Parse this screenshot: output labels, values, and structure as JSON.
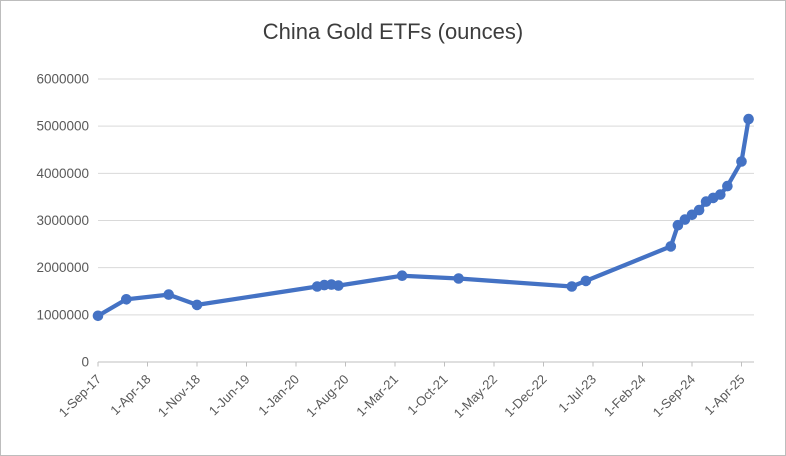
{
  "chart_data": {
    "type": "line",
    "title": "China Gold ETFs (ounces)",
    "xlabel": "",
    "ylabel": "",
    "ylim": [
      0,
      6000000
    ],
    "y_tick_step": 1000000,
    "y_tick_labels": [
      "0",
      "1000000",
      "2000000",
      "3000000",
      "4000000",
      "5000000",
      "6000000"
    ],
    "x_axis_start": "2017-09",
    "x_tick_interval_months": 7,
    "x_tick_labels": [
      "1-Sep-17",
      "1-Apr-18",
      "1-Nov-18",
      "1-Jun-19",
      "1-Jan-20",
      "1-Aug-20",
      "1-Mar-21",
      "1-Oct-21",
      "1-May-22",
      "1-Dec-22",
      "1-Jul-23",
      "1-Feb-24",
      "1-Sep-24",
      "1-Apr-25"
    ],
    "grid": "horizontal-only",
    "legend_position": "none",
    "series": [
      {
        "name": "China Gold ETFs (ounces)",
        "marker": "circle",
        "points": [
          {
            "date": "2017-09",
            "value": 980000
          },
          {
            "date": "2018-01",
            "value": 1330000
          },
          {
            "date": "2018-07",
            "value": 1430000
          },
          {
            "date": "2018-11",
            "value": 1210000
          },
          {
            "date": "2020-04",
            "value": 1600000
          },
          {
            "date": "2020-05",
            "value": 1630000
          },
          {
            "date": "2020-06",
            "value": 1640000
          },
          {
            "date": "2020-07",
            "value": 1620000
          },
          {
            "date": "2021-04",
            "value": 1830000
          },
          {
            "date": "2021-12",
            "value": 1770000
          },
          {
            "date": "2023-04",
            "value": 1600000
          },
          {
            "date": "2023-06",
            "value": 1720000
          },
          {
            "date": "2024-06",
            "value": 2450000
          },
          {
            "date": "2024-07",
            "value": 2900000
          },
          {
            "date": "2024-08",
            "value": 3020000
          },
          {
            "date": "2024-09",
            "value": 3120000
          },
          {
            "date": "2024-10",
            "value": 3220000
          },
          {
            "date": "2024-11",
            "value": 3400000
          },
          {
            "date": "2024-12",
            "value": 3480000
          },
          {
            "date": "2025-01",
            "value": 3550000
          },
          {
            "date": "2025-02",
            "value": 3730000
          },
          {
            "date": "2025-04",
            "value": 4250000
          },
          {
            "date": "2025-05",
            "value": 5150000
          }
        ]
      }
    ],
    "colors": {
      "line": "#4472C4",
      "marker": "#4472C4",
      "gridline": "#D9D9D9",
      "axis": "#BFBFBF",
      "tick_label": "#595959",
      "title": "#3D3D3D",
      "background": "#FFFFFF",
      "frame_border": "#BDBDBD"
    }
  }
}
